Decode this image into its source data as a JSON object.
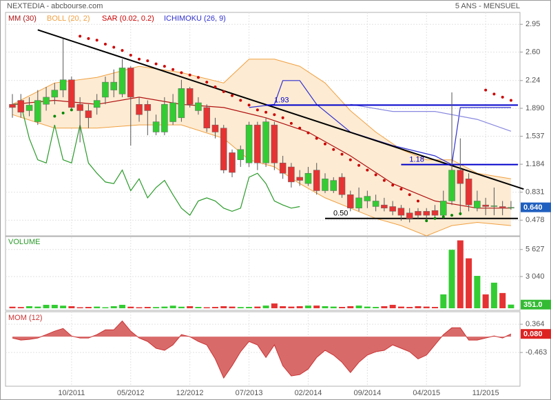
{
  "header": {
    "title": "NEXTEDIA - abcbourse.com",
    "period": "5 ANS - MENSUEL"
  },
  "chart_data": [
    {
      "type": "candlestick",
      "categories": [
        null,
        null,
        null,
        null,
        null,
        null,
        null,
        "10/2011",
        null,
        null,
        null,
        null,
        null,
        null,
        "05/2012",
        null,
        null,
        null,
        null,
        null,
        null,
        "12/2012",
        null,
        null,
        null,
        null,
        null,
        null,
        "07/2013",
        null,
        null,
        null,
        null,
        null,
        null,
        "02/2014",
        null,
        null,
        null,
        null,
        null,
        null,
        "09/2014",
        null,
        null,
        null,
        null,
        null,
        null,
        "04/2015",
        null,
        null,
        null,
        null,
        null,
        null,
        "11/2015",
        null,
        null,
        null
      ],
      "open": [
        1.94,
        1.99,
        1.86,
        1.72,
        1.94,
        2.03,
        2.12,
        2.25,
        1.94,
        1.86,
        1.9,
        2.03,
        2.12,
        2.07,
        2.4,
        1.94,
        1.94,
        1.59,
        1.59,
        1.72,
        1.77,
        2.14,
        1.86,
        1.9,
        1.68,
        1.64,
        1.33,
        1.24,
        1.2,
        1.68,
        1.2,
        1.68,
        1.2,
        1.15,
        1.02,
        0.94,
        1.11,
        0.85,
        0.85,
        1.02,
        0.8,
        0.63,
        0.72,
        0.65,
        0.67,
        0.65,
        0.63,
        0.57,
        0.59,
        0.59,
        0.6,
        0.54,
        0.72,
        1.11,
        1.0,
        0.63,
        0.67,
        0.65,
        0.65,
        0.63
      ],
      "high": [
        2.07,
        2.07,
        2.03,
        2.12,
        2.16,
        2.21,
        2.77,
        2.29,
        2.03,
        1.94,
        2.07,
        2.29,
        2.38,
        2.51,
        2.42,
        2.03,
        1.99,
        1.81,
        2.03,
        2.07,
        2.25,
        2.16,
        2.03,
        1.94,
        1.77,
        1.68,
        1.37,
        1.42,
        1.72,
        1.72,
        1.77,
        1.72,
        1.29,
        1.2,
        1.11,
        1.15,
        1.2,
        1.07,
        1.02,
        1.07,
        0.85,
        0.89,
        0.85,
        0.8,
        0.76,
        0.72,
        0.67,
        0.63,
        0.63,
        0.63,
        0.67,
        0.85,
        2.09,
        1.51,
        1.07,
        0.85,
        0.76,
        0.89,
        0.72,
        0.72
      ],
      "low": [
        1.77,
        1.77,
        1.79,
        1.68,
        1.86,
        1.94,
        2.03,
        1.86,
        1.46,
        1.64,
        1.81,
        1.94,
        2.03,
        2.03,
        1.42,
        1.72,
        1.55,
        1.55,
        1.55,
        1.68,
        1.72,
        1.9,
        1.81,
        1.59,
        1.51,
        1.07,
        1.02,
        1.15,
        1.15,
        1.11,
        1.15,
        1.11,
        1.0,
        0.89,
        0.91,
        0.91,
        0.8,
        0.82,
        0.82,
        0.76,
        0.59,
        0.59,
        0.63,
        0.59,
        0.59,
        0.54,
        0.47,
        0.45,
        0.5,
        0.5,
        0.5,
        0.5,
        0.67,
        0.54,
        0.59,
        0.59,
        0.54,
        0.54,
        0.54,
        0.61
      ],
      "close": [
        1.9,
        1.84,
        1.93,
        1.99,
        2.03,
        2.12,
        2.25,
        1.9,
        1.86,
        1.77,
        1.99,
        2.22,
        2.22,
        2.4,
        2.03,
        1.81,
        1.86,
        1.72,
        1.94,
        1.96,
        2.14,
        1.94,
        1.96,
        1.64,
        1.59,
        1.11,
        1.08,
        1.37,
        1.68,
        1.2,
        1.72,
        1.2,
        1.07,
        0.96,
        0.98,
        1.07,
        0.85,
        1.0,
        0.98,
        0.8,
        0.63,
        0.76,
        0.78,
        0.72,
        0.63,
        0.59,
        0.54,
        0.5,
        0.54,
        0.54,
        0.54,
        0.72,
        1.11,
        0.94,
        0.67,
        0.72,
        0.65,
        0.66,
        0.63,
        0.64
      ],
      "up_color": "#33cc33",
      "down_color": "#e53333",
      "ylim": [
        0.28,
        3.1
      ],
      "yticks": [
        2.95,
        {
          "value": 2.6,
          "label": "2.60"
        },
        2.24,
        {
          "value": 1.89,
          "label": "1.890"
        },
        1.537,
        1.184,
        0.831,
        0.478
      ],
      "grid": true,
      "last_value": {
        "value": 0.64,
        "label": "0.640",
        "color": "#1f5fbf"
      },
      "overlays": [
        {
          "name": "MM (30)",
          "kind": "line",
          "color": "#b01010",
          "x": [
            0,
            5,
            10,
            15,
            20,
            25,
            30,
            35,
            40,
            45,
            50,
            55,
            59
          ],
          "values": [
            1.94,
            1.99,
            1.94,
            2.03,
            1.94,
            1.9,
            1.77,
            1.59,
            1.29,
            0.94,
            0.72,
            0.63,
            0.63
          ]
        },
        {
          "name": "BOLL (20, 2)",
          "kind": "band",
          "color": "#f0a040",
          "fill": "#fdebd3",
          "x": [
            0,
            5,
            10,
            15,
            20,
            25,
            28,
            31,
            34,
            37,
            40,
            43,
            46,
            49,
            52,
            55,
            59
          ],
          "upper": [
            1.94,
            2.21,
            2.28,
            2.42,
            2.34,
            2.21,
            2.51,
            2.51,
            2.42,
            2.21,
            1.86,
            1.59,
            1.37,
            1.24,
            1.24,
            1.07,
            1.0
          ],
          "lower": [
            1.81,
            1.64,
            1.64,
            1.68,
            1.68,
            1.51,
            1.24,
            1.15,
            0.94,
            0.76,
            0.63,
            0.5,
            0.41,
            0.28,
            0.41,
            0.45,
            0.41
          ]
        },
        {
          "name": "SAR (0.02, 0.2)",
          "kind": "dots",
          "color": "#cc0000",
          "below_color": "#008800",
          "values": [
            null,
            null,
            null,
            null,
            null,
            1.79,
            1.83,
            1.87,
            2.8,
            2.77,
            2.75,
            2.7,
            2.66,
            2.62,
            2.56,
            2.51,
            2.49,
            2.45,
            2.42,
            2.38,
            2.34,
            2.31,
            2.28,
            2.22,
            2.16,
            2.1,
            2.05,
            1.99,
            1.93,
            1.87,
            1.84,
            1.81,
            1.77,
            1.7,
            1.64,
            1.58,
            1.51,
            1.44,
            1.37,
            1.31,
            1.24,
            1.17,
            1.11,
            1.05,
            0.98,
            0.92,
            0.87,
            0.8,
            0.72,
            0.47,
            0.5,
            0.52,
            0.54,
            0.56,
            null,
            null,
            2.12,
            2.07,
            2.03,
            1.99
          ]
        },
        {
          "name": "ICHIMOKU (26, 9)",
          "kind": "lines",
          "color": "#3030d0",
          "lines": [
            {
              "color": "#3030d0",
              "x": [
                28,
                31,
                32,
                34,
                36,
                40,
                45,
                50,
                52,
                53,
                56,
                59
              ],
              "values": [
                1.9,
                1.94,
                2.24,
                2.24,
                1.94,
                1.59,
                1.42,
                1.29,
                1.18,
                1.9,
                1.9,
                1.9
              ]
            },
            {
              "color": "#8888e0",
              "x": [
                40,
                45,
                50,
                55,
                59
              ],
              "values": [
                1.94,
                1.85,
                1.85,
                1.75,
                1.6
              ]
            },
            {
              "color": "#2a9a2a",
              "x": [
                0,
                1,
                2,
                3,
                4,
                5,
                6,
                7,
                8,
                9,
                10,
                11,
                12,
                13,
                14,
                15,
                16,
                17,
                18,
                19,
                20,
                21,
                22,
                23,
                24,
                25,
                26,
                27,
                28,
                29,
                30,
                31,
                32,
                33,
                34
              ],
              "values": [
                1.94,
                1.94,
                1.51,
                1.24,
                1.2,
                1.68,
                1.24,
                1.2,
                1.68,
                1.2,
                1.07,
                0.96,
                0.94,
                1.11,
                0.85,
                1.0,
                0.76,
                0.89,
                0.98,
                0.8,
                0.63,
                0.54,
                0.72,
                0.76,
                0.72,
                0.63,
                0.59,
                0.63,
                1.02,
                1.07,
                0.94,
                0.72,
                0.67,
                0.63,
                0.65
              ]
            }
          ]
        }
      ],
      "trendline": {
        "color": "#000000",
        "x": [
          3,
          60.5
        ],
        "values": [
          2.88,
          0.87
        ]
      },
      "levels": [
        {
          "value": 1.93,
          "from": 30,
          "color": "#0000cc"
        },
        {
          "value": 1.18,
          "from": 46,
          "color": "#0000cc"
        },
        {
          "value": 0.5,
          "label": "0.50",
          "from": 37,
          "color": "#000000"
        }
      ]
    },
    {
      "type": "bar",
      "title": "VOLUME",
      "values": [
        150,
        120,
        200,
        160,
        330,
        330,
        250,
        200,
        100,
        130,
        160,
        100,
        200,
        330,
        150,
        100,
        130,
        120,
        160,
        250,
        150,
        200,
        130,
        100,
        130,
        200,
        160,
        120,
        130,
        160,
        260,
        460,
        200,
        160,
        200,
        260,
        260,
        200,
        160,
        130,
        200,
        260,
        160,
        130,
        200,
        330,
        160,
        130,
        200,
        160,
        130,
        1330,
        5600,
        6500,
        4780,
        3100,
        1330,
        2450,
        1460,
        351
      ],
      "ylim": [
        0,
        6800
      ],
      "yticks": [
        {
          "value": 5627,
          "label": "5 627"
        },
        {
          "value": 3040,
          "label": "3 040"
        }
      ],
      "grid": true,
      "last_value": {
        "value": 351,
        "label": "351.0",
        "color": "#33bb33"
      }
    },
    {
      "type": "area",
      "title": "MOM (12)",
      "color": "#cc3333",
      "fill": "#d96a6a",
      "values": [
        -0.04,
        -0.1,
        -0.08,
        -0.04,
        0.06,
        0.16,
        0.24,
        0.02,
        -0.04,
        -0.04,
        0.06,
        0.2,
        0.2,
        0.46,
        0.16,
        -0.04,
        -0.14,
        -0.34,
        -0.4,
        -0.24,
        0.06,
        0,
        -0.14,
        -0.24,
        -0.65,
        -1.21,
        -0.85,
        -0.44,
        -0.14,
        -0.24,
        -0.61,
        -0.24,
        -0.85,
        -1.15,
        -1.11,
        -0.95,
        -0.61,
        -0.4,
        -0.54,
        -0.75,
        -1.05,
        -0.75,
        -0.54,
        -0.44,
        -0.4,
        -0.24,
        -0.34,
        -0.44,
        -0.65,
        -0.54,
        -0.24,
        0.06,
        0.26,
        0.26,
        -0.1,
        -0.1,
        -0.04,
        0.02,
        -0.04,
        0.08
      ],
      "ylim": [
        -1.45,
        0.73
      ],
      "yticks": [
        0.364,
        -0.463
      ],
      "grid": true,
      "last_value": {
        "value": 0.08,
        "label": "0.080",
        "color": "#dd2222"
      }
    }
  ]
}
